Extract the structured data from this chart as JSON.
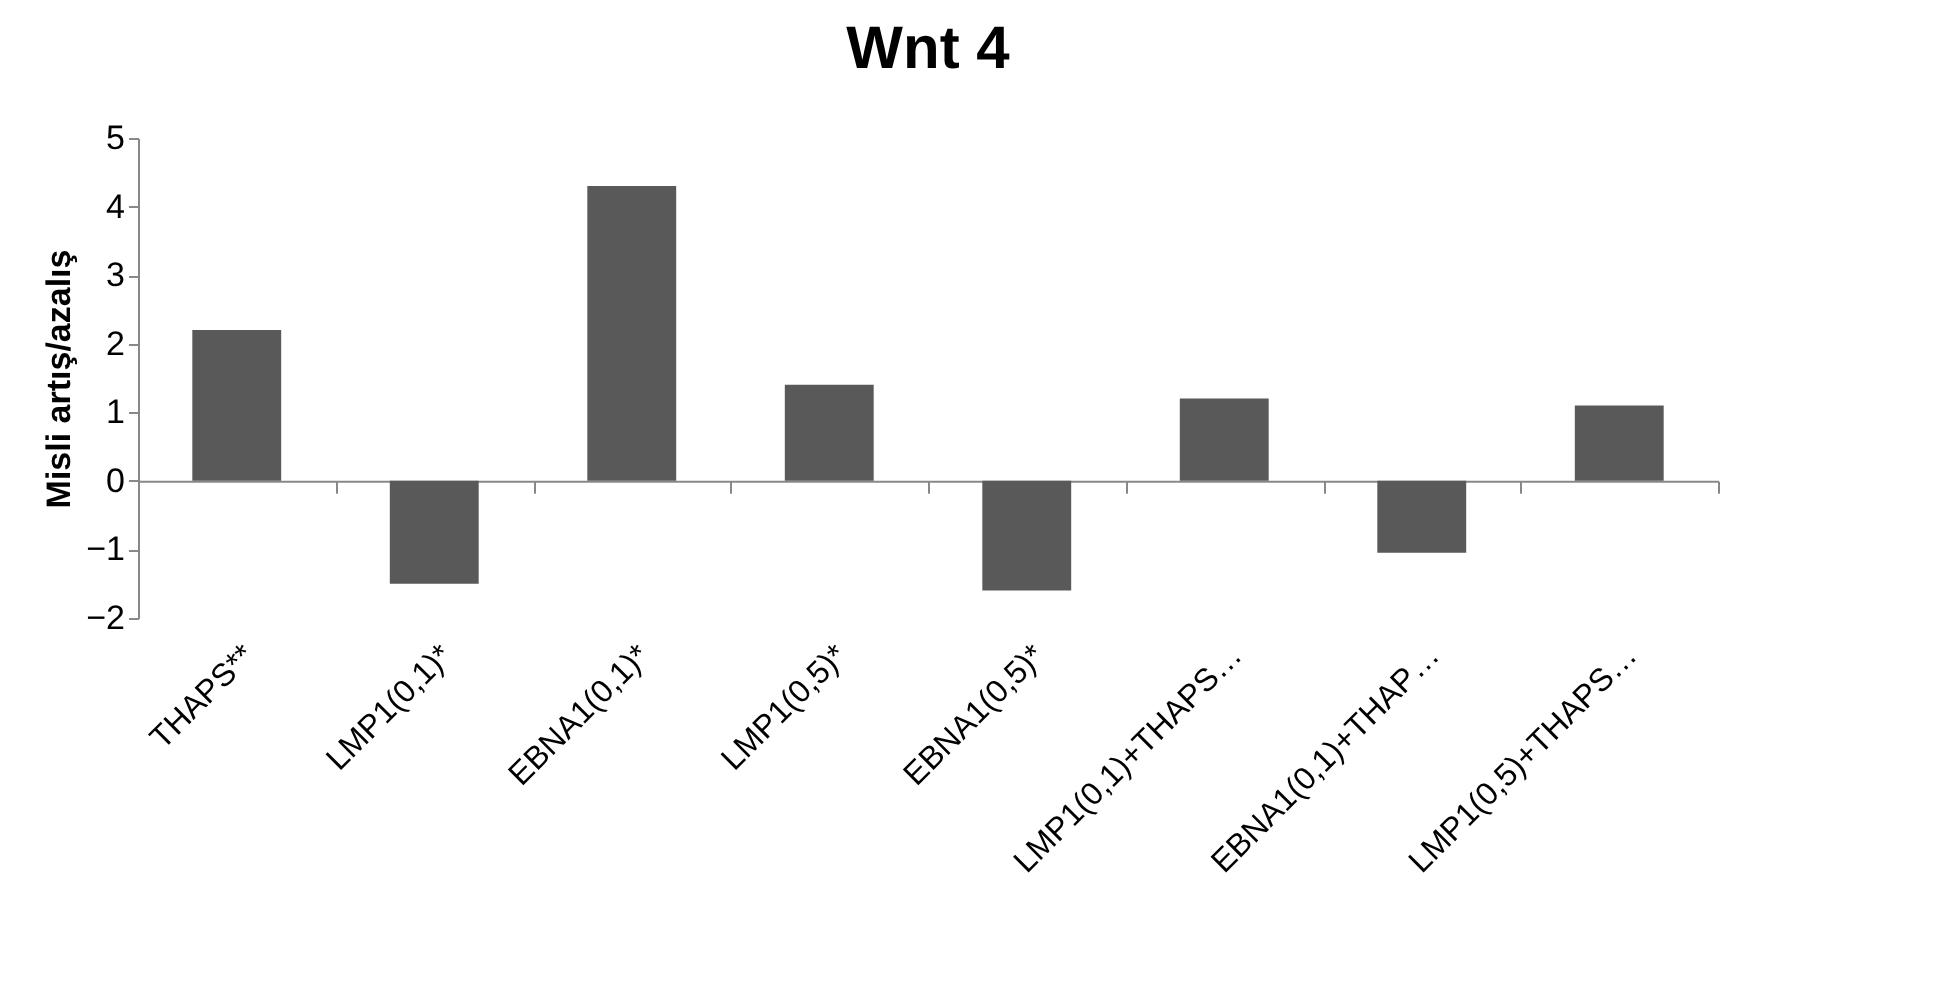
{
  "chart_data": {
    "type": "bar",
    "title": "Wnt 4",
    "ylabel": "Misli artış/azalış",
    "categories": [
      "THAPS**",
      "LMP1(0,1)*",
      "EBNA1(0,1)*",
      "LMP1(0,5)*",
      "EBNA1(0,5)*",
      "LMP1(0,1)+THAPS…",
      "EBNA1(0,1)+THAP…",
      "LMP1(0,5)+THAPS…"
    ],
    "values": [
      2.2,
      -1.5,
      4.3,
      1.4,
      -1.6,
      1.2,
      -1.05,
      1.1
    ],
    "color": "#595959",
    "ylim": [
      -2,
      5
    ],
    "yticks": [
      -2,
      -1,
      0,
      1,
      2,
      3,
      4,
      5
    ]
  }
}
